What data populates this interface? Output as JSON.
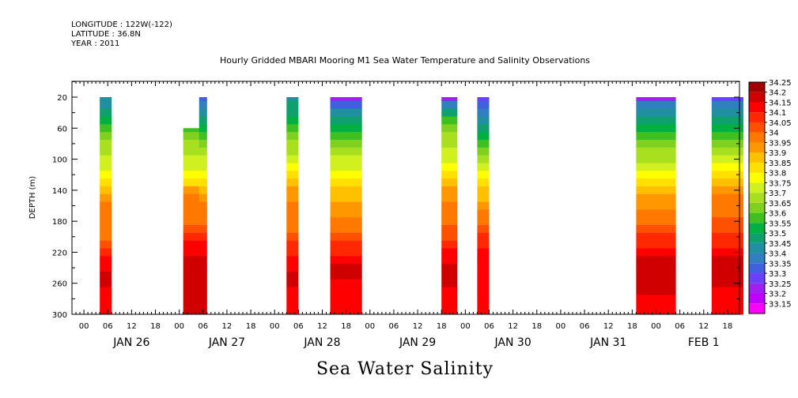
{
  "header": {
    "longitude": "LONGITUDE : 122W(-122)",
    "latitude": "LATITUDE : 36.8N",
    "year": "YEAR : 2011"
  },
  "chart_data": {
    "type": "heatmap",
    "title": "Hourly Gridded MBARI Mooring M1 Sea Water Temperature and Salinity Observations",
    "xlabel": "Sea Water Salinity",
    "ylabel": "DEPTH (m)",
    "ylim": [
      300,
      0
    ],
    "y_ticks": [
      20,
      60,
      100,
      140,
      180,
      220,
      260,
      300
    ],
    "x_hour_ticks": [
      "00",
      "06",
      "12",
      "18"
    ],
    "x_days": [
      "JAN 26",
      "JAN 27",
      "JAN 28",
      "JAN 29",
      "JAN 30",
      "JAN 31",
      "FEB 1"
    ],
    "x_range_hours": [
      -3,
      165
    ],
    "colorbar": {
      "levels": [
        33.15,
        33.2,
        33.25,
        33.3,
        33.35,
        33.4,
        33.45,
        33.5,
        33.55,
        33.6,
        33.65,
        33.7,
        33.75,
        33.8,
        33.85,
        33.9,
        33.95,
        34,
        34.05,
        34.1,
        34.15,
        34.2,
        34.25
      ],
      "labels": [
        "34.25",
        "34.2",
        "34.15",
        "34.1",
        "34.05",
        "34",
        "33.95",
        "33.9",
        "33.85",
        "33.8",
        "33.75",
        "33.7",
        "33.65",
        "33.6",
        "33.55",
        "33.5",
        "33.45",
        "33.4",
        "33.35",
        "33.3",
        "33.25",
        "33.2",
        "33.15"
      ],
      "colors": [
        "#ff00ff",
        "#c000ff",
        "#a020f0",
        "#6a40ff",
        "#4060e0",
        "#3080c0",
        "#2090a0",
        "#10a070",
        "#00b040",
        "#40c020",
        "#80d020",
        "#a8e020",
        "#d0f020",
        "#ffff00",
        "#ffe000",
        "#ffc000",
        "#ff9800",
        "#ff7800",
        "#ff5000",
        "#ff2800",
        "#ff0000",
        "#d00000",
        "#a00000"
      ]
    },
    "depths": [
      20,
      30,
      40,
      50,
      60,
      70,
      80,
      90,
      100,
      110,
      120,
      130,
      140,
      150,
      160,
      170,
      180,
      190,
      200,
      210,
      220,
      230,
      240,
      250,
      260,
      270,
      280,
      290,
      300
    ],
    "columns": [
      {
        "start_hour": 4,
        "end_hour": 6,
        "top_depth": 20,
        "profile": [
          33.45,
          33.45,
          33.5,
          33.55,
          33.6,
          33.65,
          33.7,
          33.7,
          33.75,
          33.75,
          33.8,
          33.85,
          33.9,
          33.95,
          34.0,
          34.0,
          34.0,
          34.0,
          34.0,
          34.05,
          34.1,
          34.15,
          34.15,
          34.2,
          34.2,
          34.15,
          34.15,
          34.15,
          34.15
        ]
      },
      {
        "start_hour": 25,
        "end_hour": 29,
        "top_depth": 60,
        "profile": [
          33.45,
          33.5,
          33.55,
          33.6,
          33.6,
          33.65,
          33.7,
          33.7,
          33.75,
          33.75,
          33.8,
          33.85,
          33.95,
          34.0,
          34.0,
          34.0,
          34.0,
          34.05,
          34.1,
          34.15,
          34.15,
          34.2,
          34.2,
          34.2,
          34.2,
          34.2,
          34.2,
          34.2,
          34.2
        ]
      },
      {
        "start_hour": 29,
        "end_hour": 30,
        "top_depth": 20,
        "profile": [
          33.35,
          33.4,
          33.45,
          33.5,
          33.55,
          33.6,
          33.65,
          33.7,
          33.75,
          33.75,
          33.8,
          33.85,
          33.9,
          33.95,
          34.0,
          34.0,
          34.0,
          34.05,
          34.1,
          34.15,
          34.15,
          34.2,
          34.2,
          34.2,
          34.2,
          34.2,
          34.2,
          34.2,
          34.2
        ]
      },
      {
        "start_hour": 51,
        "end_hour": 53,
        "top_depth": 20,
        "profile": [
          33.45,
          33.5,
          33.5,
          33.55,
          33.6,
          33.65,
          33.7,
          33.7,
          33.75,
          33.8,
          33.85,
          33.9,
          33.95,
          33.95,
          34.0,
          34.0,
          34.0,
          34.0,
          34.05,
          34.1,
          34.1,
          34.15,
          34.15,
          34.2,
          34.2,
          34.15,
          34.15,
          34.15,
          34.15
        ]
      },
      {
        "start_hour": 62,
        "end_hour": 69,
        "top_depth": 20,
        "profile": [
          33.25,
          33.35,
          33.45,
          33.5,
          33.55,
          33.6,
          33.65,
          33.7,
          33.75,
          33.75,
          33.8,
          33.85,
          33.9,
          33.9,
          33.95,
          33.95,
          34.0,
          34.0,
          34.05,
          34.1,
          34.1,
          34.15,
          34.2,
          34.2,
          34.15,
          34.15,
          34.15,
          34.15,
          34.15
        ]
      },
      {
        "start_hour": 90,
        "end_hour": 93,
        "top_depth": 20,
        "profile": [
          33.25,
          33.4,
          33.5,
          33.6,
          33.65,
          33.7,
          33.7,
          33.75,
          33.75,
          33.8,
          33.85,
          33.9,
          33.95,
          33.95,
          34.0,
          34.0,
          34.0,
          34.05,
          34.05,
          34.1,
          34.15,
          34.15,
          34.2,
          34.25,
          34.2,
          34.15,
          34.15,
          34.15,
          34.15
        ]
      },
      {
        "start_hour": 99,
        "end_hour": 101,
        "top_depth": 20,
        "profile": [
          33.3,
          33.35,
          33.4,
          33.45,
          33.5,
          33.55,
          33.6,
          33.65,
          33.7,
          33.75,
          33.8,
          33.85,
          33.9,
          33.9,
          33.95,
          34.0,
          34.0,
          34.05,
          34.1,
          34.1,
          34.15,
          34.15,
          34.15,
          34.15,
          34.15,
          34.15,
          34.15,
          34.15,
          34.15
        ]
      },
      {
        "start_hour": 139,
        "end_hour": 148,
        "top_depth": 20,
        "profile": [
          33.25,
          33.4,
          33.45,
          33.5,
          33.55,
          33.6,
          33.65,
          33.7,
          33.7,
          33.75,
          33.8,
          33.85,
          33.9,
          33.95,
          33.95,
          34.0,
          34.0,
          34.05,
          34.1,
          34.1,
          34.15,
          34.2,
          34.2,
          34.2,
          34.2,
          34.2,
          34.15,
          34.15,
          34.15
        ]
      },
      {
        "start_hour": 158,
        "end_hour": 165,
        "top_depth": 20,
        "profile": [
          33.3,
          33.4,
          33.45,
          33.5,
          33.55,
          33.6,
          33.65,
          33.7,
          33.75,
          33.8,
          33.85,
          33.9,
          33.95,
          34.0,
          34.0,
          34.0,
          34.05,
          34.05,
          34.1,
          34.1,
          34.15,
          34.2,
          34.2,
          34.2,
          34.2,
          34.15,
          34.15,
          34.15,
          34.15
        ]
      }
    ]
  }
}
